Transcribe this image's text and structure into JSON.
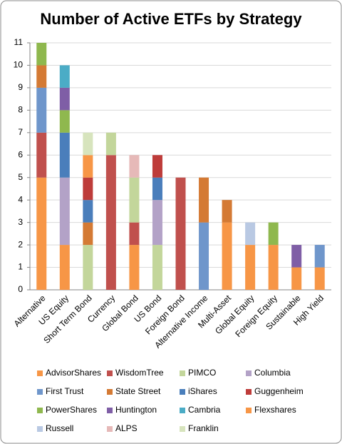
{
  "chart_data": {
    "type": "stacked_bar",
    "title": "Number of Active ETFs by Strategy",
    "categories": [
      "Alternative",
      "US Equity",
      "Short Term Bond",
      "Currency",
      "Global Bond",
      "US Bond",
      "Foreign Bond",
      "Alternative Income",
      "Multi-Asset",
      "Global Equity",
      "Foreign Equity",
      "Sustainable",
      "High Yield"
    ],
    "series": [
      {
        "name": "AdvisorShares",
        "color": "#f79646",
        "values": [
          5,
          2,
          0,
          0,
          2,
          0,
          0,
          0,
          3,
          0,
          2,
          1,
          1
        ]
      },
      {
        "name": "WisdomTree",
        "color": "#c0504d",
        "values": [
          2,
          0,
          0,
          6,
          1,
          0,
          5,
          0,
          0,
          0,
          0,
          0,
          0
        ]
      },
      {
        "name": "PIMCO",
        "color": "#c3d69b",
        "values": [
          0,
          0,
          2,
          1,
          2,
          2,
          0,
          0,
          0,
          0,
          0,
          0,
          0
        ]
      },
      {
        "name": "Columbia",
        "color": "#b3a2c7",
        "values": [
          0,
          3,
          0,
          0,
          0,
          2,
          0,
          0,
          0,
          0,
          0,
          0,
          0
        ]
      },
      {
        "name": "First Trust",
        "color": "#6f96cb",
        "values": [
          2,
          0,
          0,
          0,
          0,
          0,
          0,
          3,
          0,
          0,
          0,
          0,
          1
        ]
      },
      {
        "name": "State Street",
        "color": "#d47a34",
        "values": [
          1,
          0,
          1,
          0,
          0,
          0,
          0,
          2,
          1,
          0,
          0,
          0,
          0
        ]
      },
      {
        "name": "iShares",
        "color": "#4a7ebb",
        "values": [
          0,
          2,
          1,
          0,
          0,
          1,
          0,
          0,
          0,
          0,
          0,
          0,
          0
        ]
      },
      {
        "name": "Guggenheim",
        "color": "#be3c3a",
        "values": [
          0,
          0,
          1,
          0,
          0,
          1,
          0,
          0,
          0,
          0,
          0,
          0,
          0
        ]
      },
      {
        "name": "PowerShares",
        "color": "#8fb84e",
        "values": [
          1,
          1,
          0,
          0,
          0,
          0,
          0,
          0,
          0,
          0,
          1,
          0,
          0
        ]
      },
      {
        "name": "Huntington",
        "color": "#7f5ea6",
        "values": [
          0,
          1,
          0,
          0,
          0,
          0,
          0,
          0,
          0,
          0,
          0,
          1,
          0
        ]
      },
      {
        "name": "Cambria",
        "color": "#4bacc6",
        "values": [
          0,
          1,
          0,
          0,
          0,
          0,
          0,
          0,
          0,
          0,
          0,
          0,
          0
        ]
      },
      {
        "name": "Flexshares",
        "color": "#f79646",
        "values": [
          0,
          0,
          1,
          0,
          0,
          0,
          0,
          0,
          0,
          2,
          0,
          0,
          0
        ]
      },
      {
        "name": "Russell",
        "color": "#b9c9e3",
        "values": [
          0,
          0,
          0,
          0,
          0,
          0,
          0,
          0,
          0,
          1,
          0,
          0,
          0
        ]
      },
      {
        "name": "ALPS",
        "color": "#e6b9b8",
        "values": [
          0,
          0,
          0,
          0,
          1,
          0,
          0,
          0,
          0,
          0,
          0,
          0,
          0
        ]
      },
      {
        "name": "Franklin",
        "color": "#d7e4bd",
        "values": [
          0,
          0,
          1,
          0,
          0,
          0,
          0,
          0,
          0,
          0,
          0,
          0,
          0
        ]
      }
    ],
    "ylim": [
      0,
      11
    ],
    "yticks": [
      0,
      1,
      2,
      3,
      4,
      5,
      6,
      7,
      8,
      9,
      10,
      11
    ],
    "grid": true
  }
}
